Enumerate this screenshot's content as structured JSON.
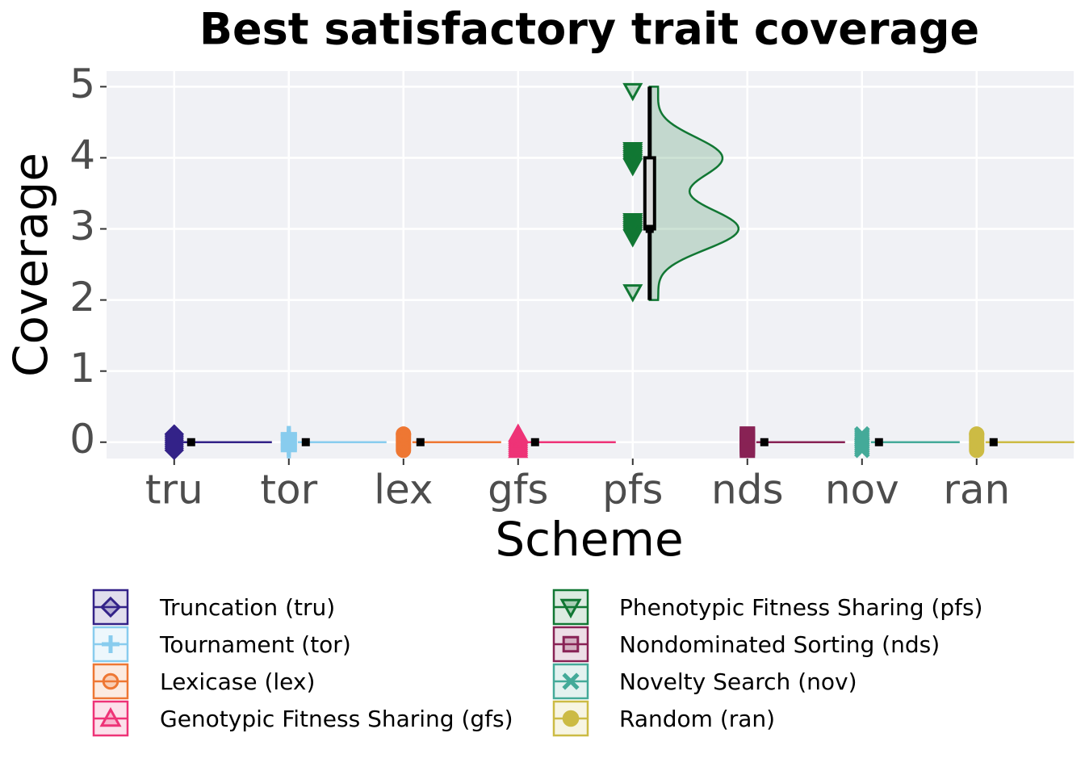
{
  "chart_data": {
    "type": "raincloud",
    "title": "Best satisfactory trait coverage",
    "x_label": "Scheme",
    "y_label": "Coverage",
    "categories": [
      "tru",
      "tor",
      "lex",
      "gfs",
      "pfs",
      "nds",
      "nov",
      "ran"
    ],
    "ylim": [
      -0.23,
      5.22
    ],
    "yticks": [
      0,
      1,
      2,
      3,
      4,
      5
    ],
    "grid": true,
    "series": [
      {
        "name": "Truncation (tru)",
        "color": "#332288",
        "marker": "diamond",
        "observations": [
          0,
          0,
          0,
          0,
          0,
          0,
          0,
          0,
          0,
          0
        ],
        "box": {
          "min": 0,
          "q1": 0,
          "median": 0,
          "q3": 0,
          "max": 0
        }
      },
      {
        "name": "Tournament (tor)",
        "color": "#88CCEE",
        "marker": "plus",
        "observations": [
          0,
          0,
          0,
          0,
          0,
          0,
          0,
          0,
          0,
          0
        ],
        "box": {
          "min": 0,
          "q1": 0,
          "median": 0,
          "q3": 0,
          "max": 0
        }
      },
      {
        "name": "Lexicase (lex)",
        "color": "#EE7733",
        "marker": "circle",
        "observations": [
          0,
          0,
          0,
          0,
          0,
          0,
          0,
          0,
          0,
          0
        ],
        "box": {
          "min": 0,
          "q1": 0,
          "median": 0,
          "q3": 0,
          "max": 0
        }
      },
      {
        "name": "Genotypic Fitness Sharing (gfs)",
        "color": "#EE3377",
        "marker": "triangle",
        "observations": [
          0,
          0,
          0,
          0,
          0,
          0,
          0,
          0,
          0,
          0
        ],
        "box": {
          "min": 0,
          "q1": 0,
          "median": 0,
          "q3": 0,
          "max": 0
        }
      },
      {
        "name": "Phenotypic Fitness Sharing (pfs)",
        "color": "#117733",
        "marker": "triangle-down",
        "observations": [
          2,
          3,
          3,
          3,
          3,
          3,
          3,
          3,
          3,
          3,
          3,
          3,
          4,
          4,
          4,
          4,
          4,
          4,
          4,
          4,
          4,
          5
        ],
        "box": {
          "min": 2,
          "q1": 3,
          "median": 3,
          "q3": 4,
          "max": 5
        }
      },
      {
        "name": "Nondominated Sorting (nds)",
        "color": "#882255",
        "marker": "square",
        "observations": [
          0,
          0,
          0,
          0,
          0,
          0,
          0,
          0,
          0,
          0
        ],
        "box": {
          "min": 0,
          "q1": 0,
          "median": 0,
          "q3": 0,
          "max": 0
        }
      },
      {
        "name": "Novelty Search (nov)",
        "color": "#44AA99",
        "marker": "x",
        "observations": [
          0,
          0,
          0,
          0,
          0,
          0,
          0,
          0,
          0,
          0
        ],
        "box": {
          "min": 0,
          "q1": 0,
          "median": 0,
          "q3": 0,
          "max": 0
        }
      },
      {
        "name": "Random (ran)",
        "color": "#CCBB44",
        "marker": "dot",
        "observations": [
          0,
          0,
          0,
          0,
          0,
          0,
          0,
          0,
          0,
          0
        ],
        "box": {
          "min": 0,
          "q1": 0,
          "median": 0,
          "q3": 0,
          "max": 0
        }
      }
    ]
  }
}
